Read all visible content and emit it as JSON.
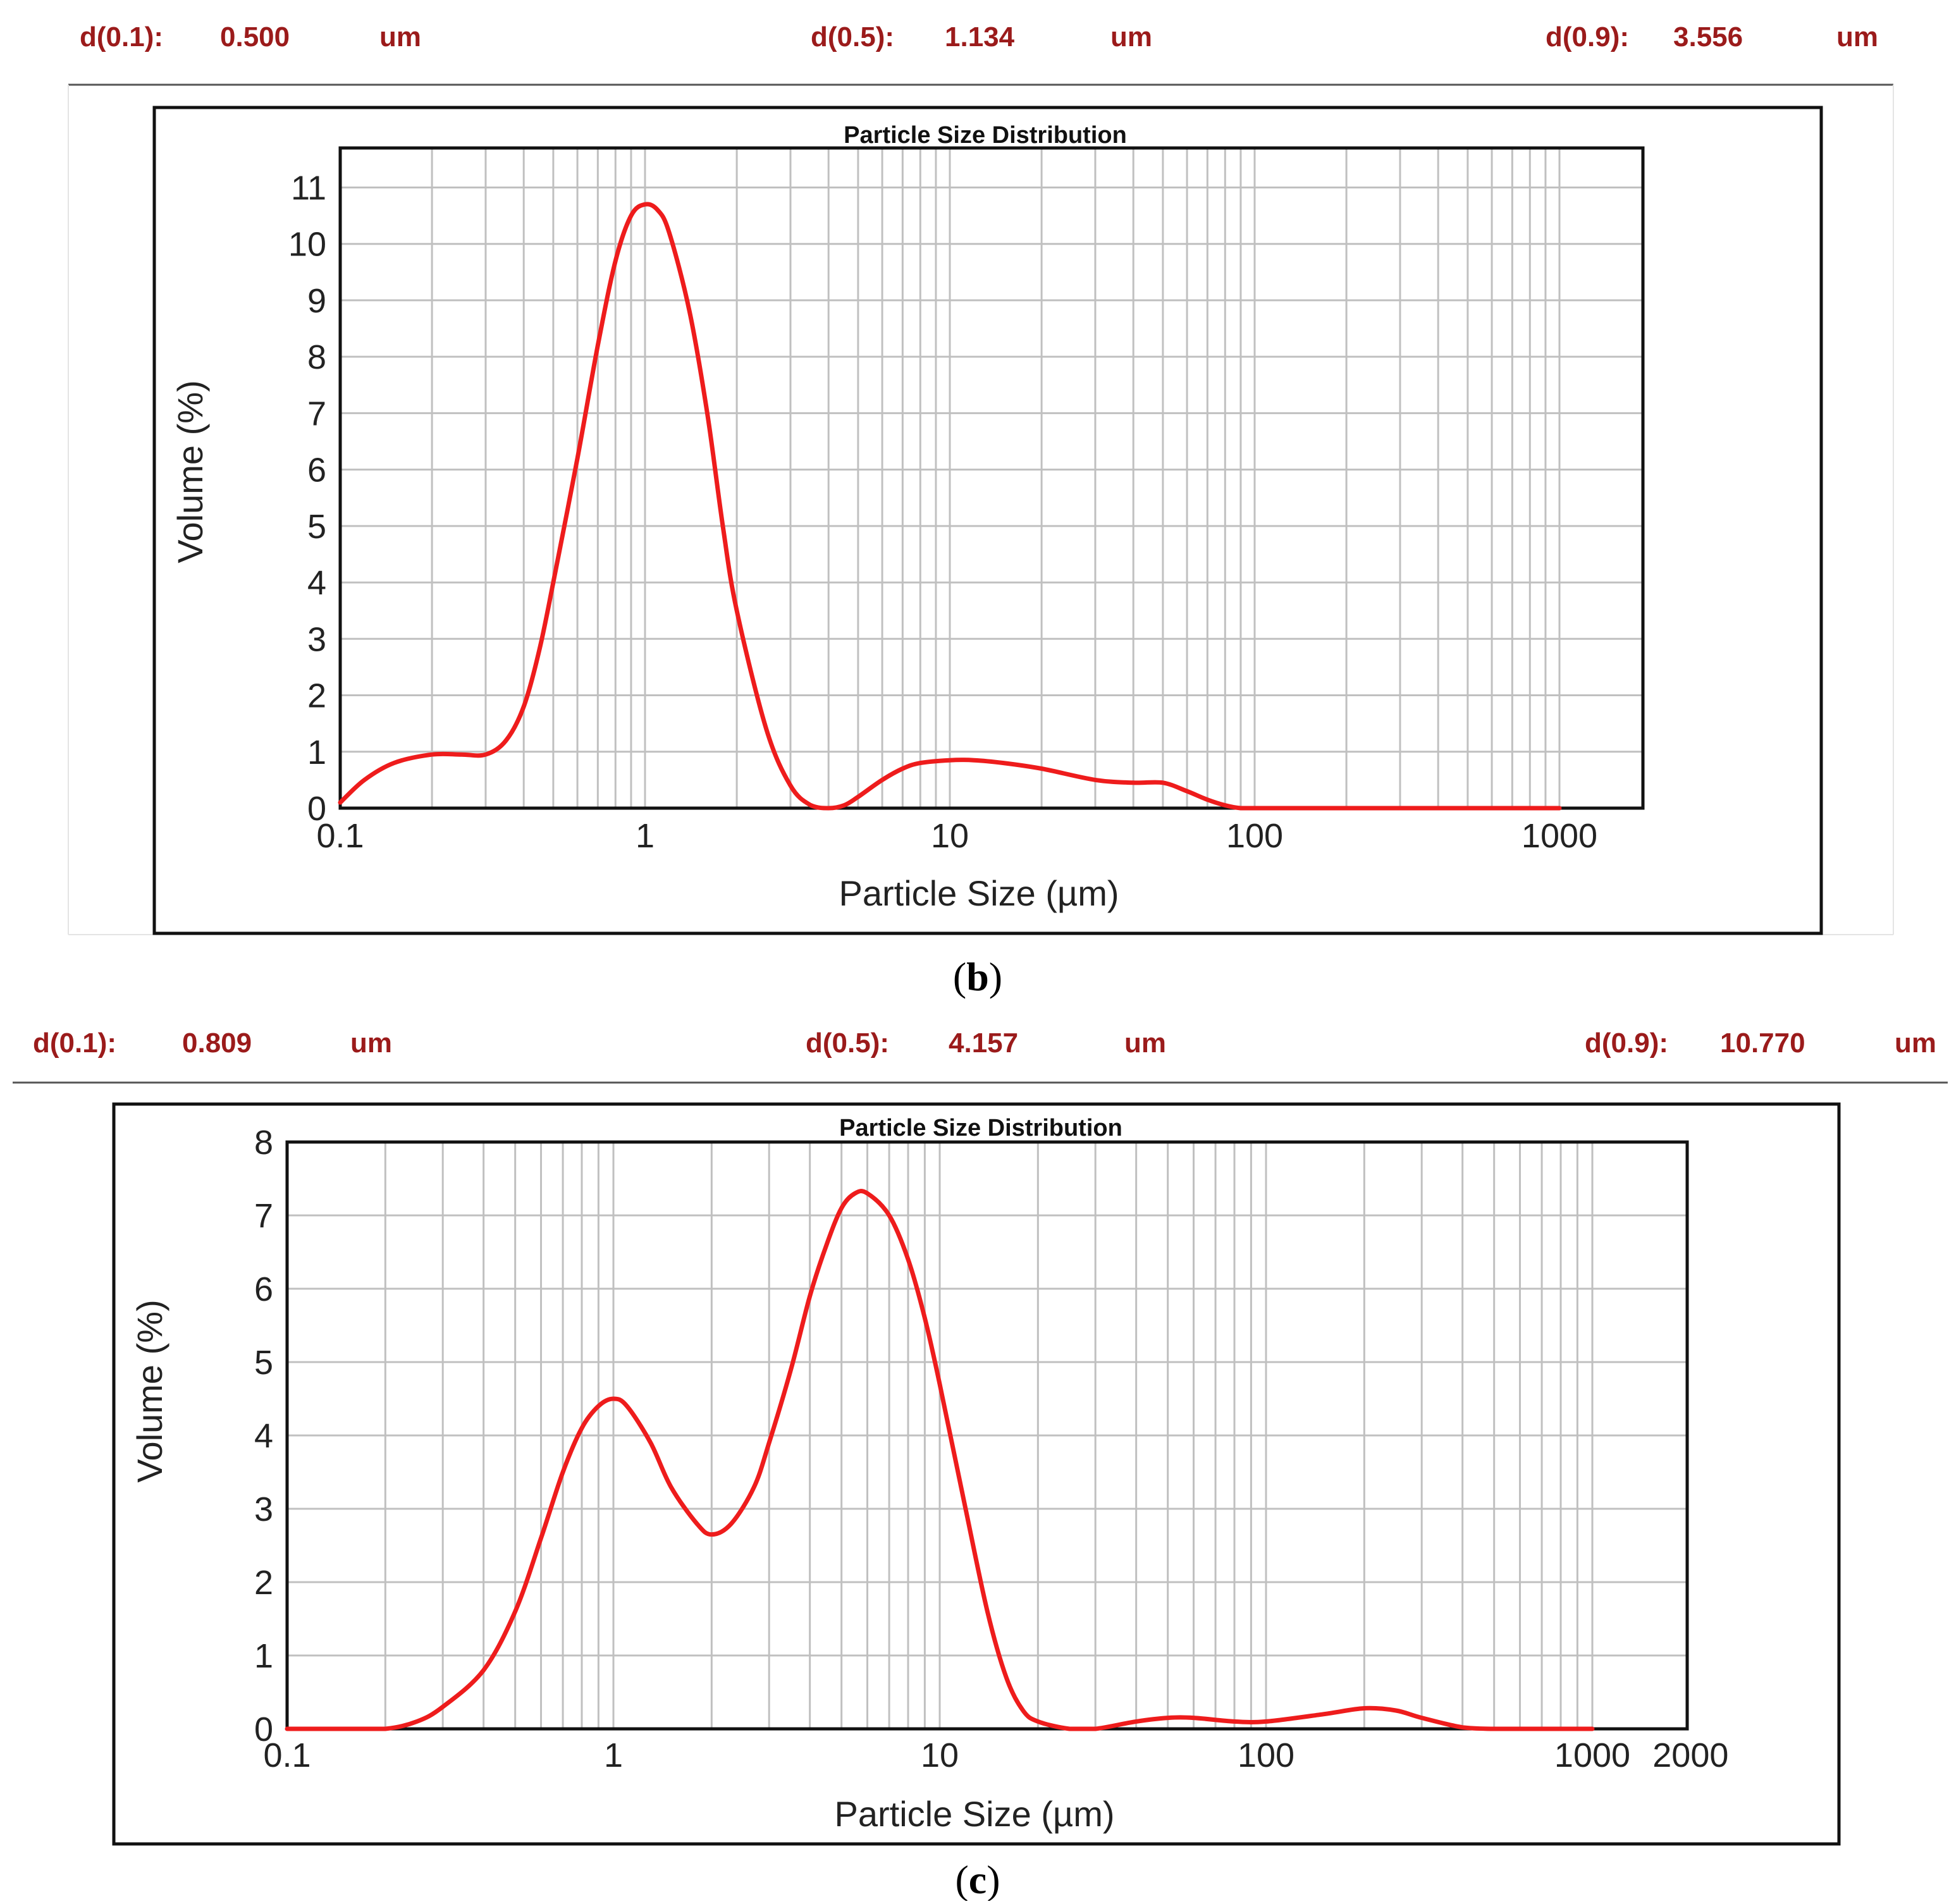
{
  "colors": {
    "curve": "#ee1c1c",
    "header_text": "#9b1b1b",
    "grid": "#c0c0c0"
  },
  "panels": [
    {
      "id": "b",
      "stats": [
        {
          "label": "d(0.1):",
          "value": "0.500",
          "unit": "um"
        },
        {
          "label": "d(0.5):",
          "value": "1.134",
          "unit": "um"
        },
        {
          "label": "d(0.9):",
          "value": "3.556",
          "unit": "um"
        }
      ],
      "caption": {
        "open": "(",
        "letter": "b",
        "close": ")"
      }
    },
    {
      "id": "c",
      "stats": [
        {
          "label": "d(0.1):",
          "value": "0.809",
          "unit": "um"
        },
        {
          "label": "d(0.5):",
          "value": "4.157",
          "unit": "um"
        },
        {
          "label": "d(0.9):",
          "value": "10.770",
          "unit": "um"
        }
      ],
      "caption": {
        "open": "(",
        "letter": "c",
        "close": ")"
      }
    }
  ],
  "chart_data": [
    {
      "type": "line",
      "title": "Particle Size Distribution",
      "xlabel": "Particle Size (µm)",
      "ylabel": "Volume (%)",
      "xscale": "log",
      "xlim": [
        0.1,
        2000
      ],
      "ylim": [
        0,
        11.7
      ],
      "grid": true,
      "x_ticks": [
        {
          "v": 0.1,
          "label": "0.1"
        },
        {
          "v": 1,
          "label": "1"
        },
        {
          "v": 10,
          "label": "10"
        },
        {
          "v": 100,
          "label": "100"
        },
        {
          "v": 1000,
          "label": "1000"
        }
      ],
      "y_ticks": [
        {
          "v": 0,
          "label": "0"
        },
        {
          "v": 1,
          "label": "1"
        },
        {
          "v": 2,
          "label": "2"
        },
        {
          "v": 3,
          "label": "3"
        },
        {
          "v": 4,
          "label": "4"
        },
        {
          "v": 5,
          "label": "5"
        },
        {
          "v": 6,
          "label": "6"
        },
        {
          "v": 7,
          "label": "7"
        },
        {
          "v": 8,
          "label": "8"
        },
        {
          "v": 9,
          "label": "9"
        },
        {
          "v": 10,
          "label": "10"
        },
        {
          "v": 11,
          "label": "11"
        }
      ],
      "series": [
        {
          "name": "Volume",
          "x": [
            0.1,
            0.12,
            0.15,
            0.2,
            0.25,
            0.3,
            0.35,
            0.4,
            0.45,
            0.5,
            0.6,
            0.7,
            0.8,
            0.9,
            1.0,
            1.1,
            1.2,
            1.4,
            1.6,
            1.8,
            2.0,
            2.5,
            3.0,
            3.5,
            4.0,
            4.5,
            5.0,
            6.0,
            7.0,
            8.0,
            10,
            12,
            15,
            20,
            30,
            40,
            50,
            60,
            70,
            80,
            90,
            100,
            200,
            500,
            1000
          ],
          "y": [
            0.1,
            0.5,
            0.8,
            0.95,
            0.95,
            0.95,
            1.2,
            1.8,
            2.8,
            4.0,
            6.2,
            8.2,
            9.7,
            10.5,
            10.7,
            10.6,
            10.2,
            8.8,
            7.0,
            5.0,
            3.5,
            1.4,
            0.4,
            0.05,
            0.0,
            0.05,
            0.2,
            0.5,
            0.7,
            0.8,
            0.85,
            0.85,
            0.8,
            0.7,
            0.5,
            0.45,
            0.45,
            0.3,
            0.15,
            0.05,
            0.0,
            0.0,
            0.0,
            0.0,
            0.0
          ]
        }
      ]
    },
    {
      "type": "line",
      "title": "Particle Size Distribution",
      "xlabel": "Particle Size (µm)",
      "ylabel": "Volume (%)",
      "xscale": "log",
      "xlim": [
        0.1,
        2000
      ],
      "ylim": [
        0,
        8
      ],
      "grid": true,
      "x_ticks": [
        {
          "v": 0.1,
          "label": "0.1"
        },
        {
          "v": 1,
          "label": "1"
        },
        {
          "v": 10,
          "label": "10"
        },
        {
          "v": 100,
          "label": "100"
        },
        {
          "v": 1000,
          "label": "1000"
        },
        {
          "v": 2000,
          "label": "2000"
        }
      ],
      "y_ticks": [
        {
          "v": 0,
          "label": "0"
        },
        {
          "v": 1,
          "label": "1"
        },
        {
          "v": 2,
          "label": "2"
        },
        {
          "v": 3,
          "label": "3"
        },
        {
          "v": 4,
          "label": "4"
        },
        {
          "v": 5,
          "label": "5"
        },
        {
          "v": 6,
          "label": "6"
        },
        {
          "v": 7,
          "label": "7"
        },
        {
          "v": 8,
          "label": "8"
        }
      ],
      "series": [
        {
          "name": "Volume",
          "x": [
            0.1,
            0.15,
            0.2,
            0.25,
            0.3,
            0.4,
            0.5,
            0.6,
            0.7,
            0.8,
            0.9,
            1.0,
            1.1,
            1.3,
            1.5,
            1.8,
            2.0,
            2.3,
            2.7,
            3.0,
            3.5,
            4.0,
            4.5,
            5.0,
            5.5,
            6.0,
            7.0,
            8.0,
            9.0,
            10,
            12,
            14,
            16,
            18,
            20,
            25,
            30,
            40,
            50,
            60,
            80,
            100,
            150,
            200,
            250,
            300,
            400,
            500,
            700,
            1000
          ],
          "y": [
            0.0,
            0.0,
            0.0,
            0.1,
            0.3,
            0.8,
            1.6,
            2.6,
            3.5,
            4.1,
            4.4,
            4.5,
            4.4,
            3.9,
            3.3,
            2.8,
            2.65,
            2.8,
            3.3,
            3.9,
            4.9,
            5.9,
            6.6,
            7.1,
            7.3,
            7.3,
            7.0,
            6.4,
            5.6,
            4.7,
            3.0,
            1.6,
            0.7,
            0.25,
            0.1,
            0.0,
            0.0,
            0.1,
            0.15,
            0.15,
            0.1,
            0.1,
            0.2,
            0.28,
            0.25,
            0.15,
            0.02,
            0.0,
            0.0,
            0.0
          ]
        }
      ]
    }
  ]
}
